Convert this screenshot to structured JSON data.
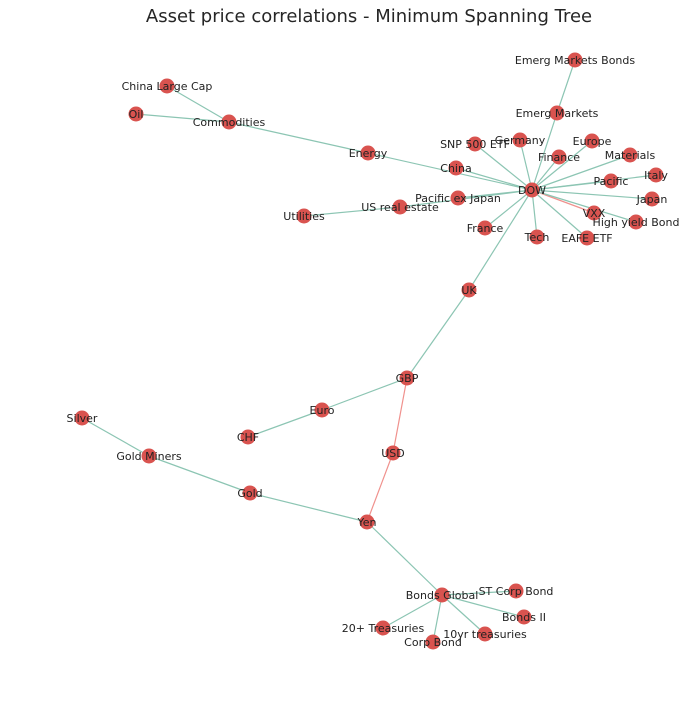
{
  "title": "Asset price correlations - Minimum Spanning Tree",
  "colors": {
    "node": "#d9534f",
    "edge_positive": "#8cc5b3",
    "edge_negative": "#f0918d",
    "label": "#222222",
    "title": "#262626"
  },
  "nodes": [
    {
      "id": "emerg-markets-bonds",
      "label": "Emerg Markets Bonds"
    },
    {
      "id": "emerg-markets",
      "label": "Emerg Markets"
    },
    {
      "id": "china-large-cap",
      "label": "China Large Cap"
    },
    {
      "id": "oil",
      "label": "Oil"
    },
    {
      "id": "commodities",
      "label": "Commodities"
    },
    {
      "id": "germany",
      "label": "Germany"
    },
    {
      "id": "snp-500-etf",
      "label": "SNP 500 ETF"
    },
    {
      "id": "europe",
      "label": "Europe"
    },
    {
      "id": "finance",
      "label": "Finance"
    },
    {
      "id": "materials",
      "label": "Materials"
    },
    {
      "id": "energy",
      "label": "Energy"
    },
    {
      "id": "china",
      "label": "China"
    },
    {
      "id": "italy",
      "label": "Italy"
    },
    {
      "id": "pacific",
      "label": "Pacific"
    },
    {
      "id": "dow",
      "label": "DOW"
    },
    {
      "id": "pacific-ex-japan",
      "label": "Pacific ex Japan"
    },
    {
      "id": "japan",
      "label": "Japan"
    },
    {
      "id": "us-real-estate",
      "label": "US real estate"
    },
    {
      "id": "utilities",
      "label": "Utilities"
    },
    {
      "id": "vxx",
      "label": "VXX"
    },
    {
      "id": "high-yield-bond",
      "label": "High yield Bond"
    },
    {
      "id": "france",
      "label": "France"
    },
    {
      "id": "tech",
      "label": "Tech"
    },
    {
      "id": "eafe-etf",
      "label": "EAFE ETF"
    },
    {
      "id": "uk",
      "label": "UK"
    },
    {
      "id": "gbp",
      "label": "GBP"
    },
    {
      "id": "silver",
      "label": "Silver"
    },
    {
      "id": "euro",
      "label": "Euro"
    },
    {
      "id": "chf",
      "label": "CHF"
    },
    {
      "id": "usd",
      "label": "USD"
    },
    {
      "id": "gold-miners",
      "label": "Gold Miners"
    },
    {
      "id": "gold",
      "label": "Gold"
    },
    {
      "id": "yen",
      "label": "Yen"
    },
    {
      "id": "st-corp-bond",
      "label": "ST Corp Bond"
    },
    {
      "id": "bonds-global",
      "label": "Bonds Global"
    },
    {
      "id": "bonds-ii",
      "label": "Bonds II"
    },
    {
      "id": "20-treasuries",
      "label": "20+ Treasuries"
    },
    {
      "id": "10yr-treasuries",
      "label": "10yr treasuries"
    },
    {
      "id": "corp-bond",
      "label": "Corp Bond"
    }
  ],
  "edges": [
    {
      "source": "emerg-markets-bonds",
      "target": "emerg-markets",
      "sign": "positive"
    },
    {
      "source": "emerg-markets",
      "target": "dow",
      "sign": "positive"
    },
    {
      "source": "china-large-cap",
      "target": "commodities",
      "sign": "positive"
    },
    {
      "source": "oil",
      "target": "commodities",
      "sign": "positive"
    },
    {
      "source": "commodities",
      "target": "energy",
      "sign": "positive"
    },
    {
      "source": "energy",
      "target": "dow",
      "sign": "positive"
    },
    {
      "source": "germany",
      "target": "dow",
      "sign": "positive"
    },
    {
      "source": "snp-500-etf",
      "target": "dow",
      "sign": "positive"
    },
    {
      "source": "europe",
      "target": "dow",
      "sign": "positive"
    },
    {
      "source": "finance",
      "target": "dow",
      "sign": "positive"
    },
    {
      "source": "materials",
      "target": "dow",
      "sign": "positive"
    },
    {
      "source": "china",
      "target": "dow",
      "sign": "positive"
    },
    {
      "source": "italy",
      "target": "dow",
      "sign": "positive"
    },
    {
      "source": "pacific",
      "target": "dow",
      "sign": "positive"
    },
    {
      "source": "pacific-ex-japan",
      "target": "dow",
      "sign": "positive"
    },
    {
      "source": "japan",
      "target": "dow",
      "sign": "positive"
    },
    {
      "source": "us-real-estate",
      "target": "dow",
      "sign": "positive"
    },
    {
      "source": "utilities",
      "target": "us-real-estate",
      "sign": "positive"
    },
    {
      "source": "vxx",
      "target": "dow",
      "sign": "negative"
    },
    {
      "source": "high-yield-bond",
      "target": "dow",
      "sign": "positive"
    },
    {
      "source": "france",
      "target": "dow",
      "sign": "positive"
    },
    {
      "source": "tech",
      "target": "dow",
      "sign": "positive"
    },
    {
      "source": "eafe-etf",
      "target": "dow",
      "sign": "positive"
    },
    {
      "source": "uk",
      "target": "dow",
      "sign": "positive"
    },
    {
      "source": "gbp",
      "target": "uk",
      "sign": "positive"
    },
    {
      "source": "euro",
      "target": "gbp",
      "sign": "positive"
    },
    {
      "source": "chf",
      "target": "euro",
      "sign": "positive"
    },
    {
      "source": "usd",
      "target": "gbp",
      "sign": "negative"
    },
    {
      "source": "yen",
      "target": "usd",
      "sign": "negative"
    },
    {
      "source": "silver",
      "target": "gold-miners",
      "sign": "positive"
    },
    {
      "source": "gold-miners",
      "target": "gold",
      "sign": "positive"
    },
    {
      "source": "gold",
      "target": "yen",
      "sign": "positive"
    },
    {
      "source": "yen",
      "target": "bonds-global",
      "sign": "positive"
    },
    {
      "source": "st-corp-bond",
      "target": "bonds-global",
      "sign": "positive"
    },
    {
      "source": "bonds-ii",
      "target": "bonds-global",
      "sign": "positive"
    },
    {
      "source": "20-treasuries",
      "target": "bonds-global",
      "sign": "positive"
    },
    {
      "source": "10yr-treasuries",
      "target": "bonds-global",
      "sign": "positive"
    },
    {
      "source": "corp-bond",
      "target": "bonds-global",
      "sign": "positive"
    }
  ]
}
